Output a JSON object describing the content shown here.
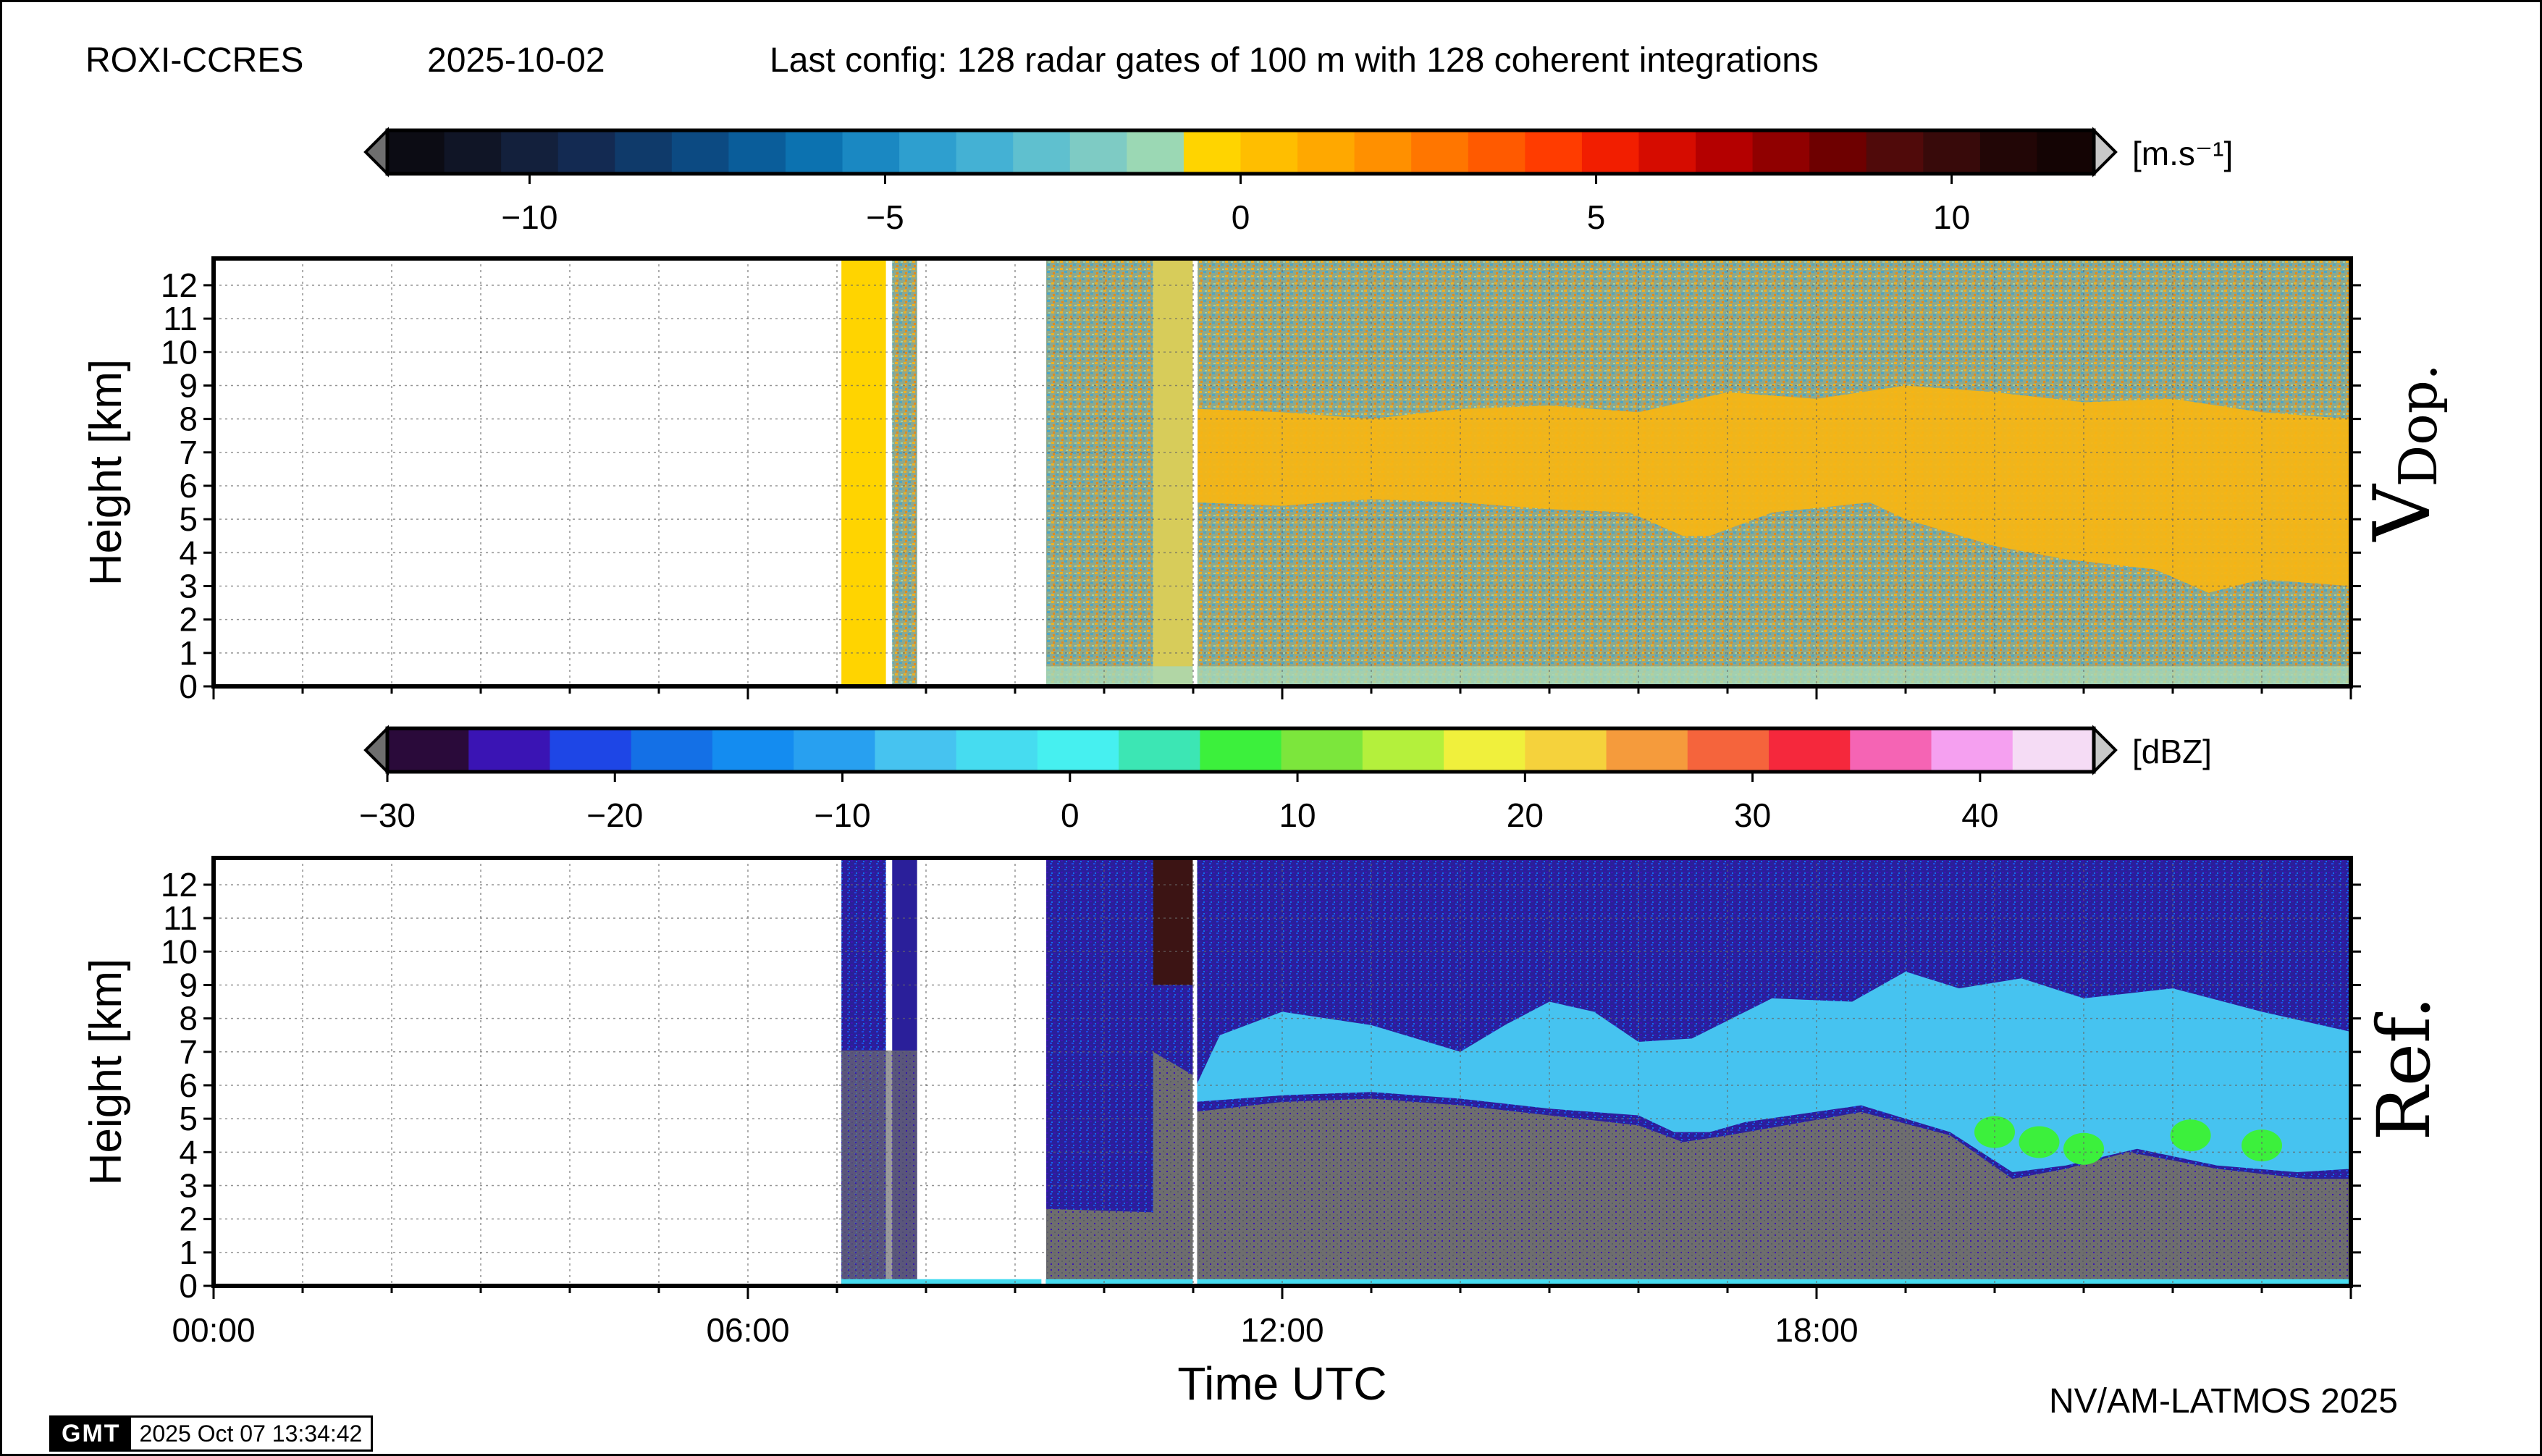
{
  "header": {
    "station": "ROXI-CCRES",
    "date": "2025-10-02",
    "config": "Last config: 128 radar gates of 100 m with 128 coherent integrations"
  },
  "footer": {
    "credit": "NV/AM-LATMOS 2025",
    "gmt_logo": "GMT",
    "timestamp": "2025 Oct 07 13:34:42"
  },
  "chart_data": [
    {
      "type": "heatmap",
      "name_label": "V",
      "name_sub": "Dop.",
      "ylabel": "Height [km]",
      "xlabel": "",
      "xlim": [
        "00:00",
        "24:00"
      ],
      "ylim": [
        0,
        12.8
      ],
      "yticks": [
        "0",
        "1",
        "2",
        "3",
        "4",
        "5",
        "6",
        "7",
        "8",
        "9",
        "10",
        "11",
        "12"
      ],
      "grid": true,
      "colorbar": {
        "unit": "[m.s-1]",
        "unit_display": "[m.s⁻¹]",
        "range": [
          -12,
          12
        ],
        "ticks": [
          "−10",
          "−5",
          "0",
          "5",
          "10"
        ],
        "tick_values": [
          -10,
          -5,
          0,
          5,
          10
        ],
        "colors": [
          "#0c0c14",
          "#101526",
          "#13203c",
          "#132a52",
          "#0f3a6a",
          "#0c4a82",
          "#0a5d9a",
          "#0c72b0",
          "#1a88c2",
          "#2e9fcf",
          "#44b1d4",
          "#5fc0cf",
          "#7ecbc4",
          "#9bd8b4",
          "#ffd400",
          "#ffbe00",
          "#ffa800",
          "#ff9000",
          "#ff7600",
          "#ff5a00",
          "#ff3c00",
          "#f21e00",
          "#d60c00",
          "#b40000",
          "#900000",
          "#6e0000",
          "#500a0a",
          "#380a0a",
          "#220606",
          "#140404"
        ]
      }
    },
    {
      "type": "heatmap",
      "name_label": "Ref.",
      "ylabel": "Height [km]",
      "xlabel": "Time UTC",
      "xlim": [
        "00:00",
        "24:00"
      ],
      "xticks": [
        "00:00",
        "06:00",
        "12:00",
        "18:00"
      ],
      "ylim": [
        0,
        12.8
      ],
      "yticks": [
        "0",
        "1",
        "2",
        "3",
        "4",
        "5",
        "6",
        "7",
        "8",
        "9",
        "10",
        "11",
        "12"
      ],
      "grid": true,
      "colorbar": {
        "unit": "[dBZ]",
        "range": [
          -30,
          45
        ],
        "ticks": [
          "−30",
          "−20",
          "−10",
          "0",
          "10",
          "20",
          "30",
          "40"
        ],
        "tick_values": [
          -30,
          -20,
          -10,
          0,
          10,
          20,
          30,
          40
        ],
        "colors": [
          "#2a0a3a",
          "#3a14b4",
          "#1e46e6",
          "#1470e6",
          "#148cf0",
          "#28a0f0",
          "#46c3f0",
          "#46dcf0",
          "#46f0f0",
          "#3ce6b4",
          "#3cf03c",
          "#7ce63c",
          "#b4f03c",
          "#f0f03c",
          "#f5d23c",
          "#f59b3c",
          "#f5643c",
          "#f5283c",
          "#f564b4",
          "#f5a0f0",
          "#f5dcf5"
        ]
      }
    }
  ],
  "colors": {
    "vdop_background": "#f5b515",
    "vdop_noise": "#7a9a7e",
    "vdop_hatch": "#ffd400",
    "ref_noise": "#2a1f9a",
    "ref_ground": "#6e6e6e",
    "ref_cloud": "#46c3f0",
    "ref_core": "#3cf03c",
    "ref_surface": "#46dcf0"
  }
}
